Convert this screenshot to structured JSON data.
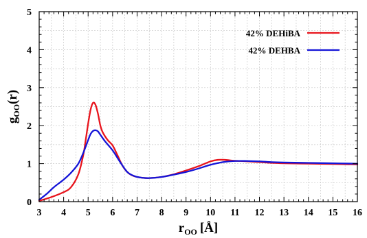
{
  "chart_data": {
    "type": "line",
    "title": "",
    "xlabel": {
      "main": "r",
      "sub": "OO",
      "unit": "[Å]"
    },
    "ylabel": {
      "main": "g",
      "sub": "OO",
      "rest": "(r)"
    },
    "xlim": [
      3,
      16
    ],
    "ylim": [
      0,
      5
    ],
    "xticks": [
      3,
      4,
      5,
      6,
      7,
      8,
      9,
      10,
      11,
      12,
      13,
      14,
      15,
      16
    ],
    "yticks": [
      0,
      1,
      2,
      3,
      4,
      5
    ],
    "grid": true,
    "legend_position": "top-right",
    "series": [
      {
        "name": "42% DEHiBA",
        "color": "#e8141c",
        "x": [
          3.0,
          3.5,
          4.0,
          4.3,
          4.6,
          4.8,
          4.9,
          5.0,
          5.1,
          5.2,
          5.3,
          5.4,
          5.5,
          5.6,
          5.8,
          6.0,
          6.2,
          6.4,
          6.6,
          6.8,
          7.0,
          7.2,
          7.5,
          8.0,
          8.5,
          9.0,
          9.5,
          10.0,
          10.3,
          10.6,
          10.9,
          11.2,
          11.5,
          12.0,
          12.5,
          13.0,
          14.0,
          15.0,
          16.0
        ],
        "y": [
          0.02,
          0.12,
          0.25,
          0.38,
          0.72,
          1.22,
          1.62,
          2.05,
          2.42,
          2.6,
          2.55,
          2.32,
          2.0,
          1.82,
          1.62,
          1.48,
          1.22,
          0.95,
          0.78,
          0.69,
          0.65,
          0.63,
          0.62,
          0.65,
          0.72,
          0.82,
          0.93,
          1.06,
          1.1,
          1.1,
          1.08,
          1.07,
          1.06,
          1.04,
          1.02,
          1.01,
          1.0,
          0.99,
          0.98
        ]
      },
      {
        "name": "42% DEHBA",
        "color": "#1414d8",
        "x": [
          3.0,
          3.3,
          3.6,
          4.0,
          4.3,
          4.6,
          4.8,
          5.0,
          5.1,
          5.2,
          5.3,
          5.4,
          5.5,
          5.7,
          6.0,
          6.3,
          6.6,
          6.9,
          7.2,
          7.5,
          8.0,
          8.5,
          9.0,
          9.5,
          10.0,
          10.5,
          11.0,
          11.5,
          12.0,
          12.5,
          13.0,
          14.0,
          15.0,
          16.0
        ],
        "y": [
          0.05,
          0.2,
          0.38,
          0.58,
          0.76,
          1.0,
          1.28,
          1.62,
          1.78,
          1.86,
          1.88,
          1.85,
          1.76,
          1.58,
          1.35,
          1.05,
          0.78,
          0.67,
          0.63,
          0.62,
          0.65,
          0.71,
          0.78,
          0.87,
          0.97,
          1.04,
          1.07,
          1.07,
          1.06,
          1.04,
          1.03,
          1.02,
          1.01,
          1.0
        ]
      }
    ]
  }
}
